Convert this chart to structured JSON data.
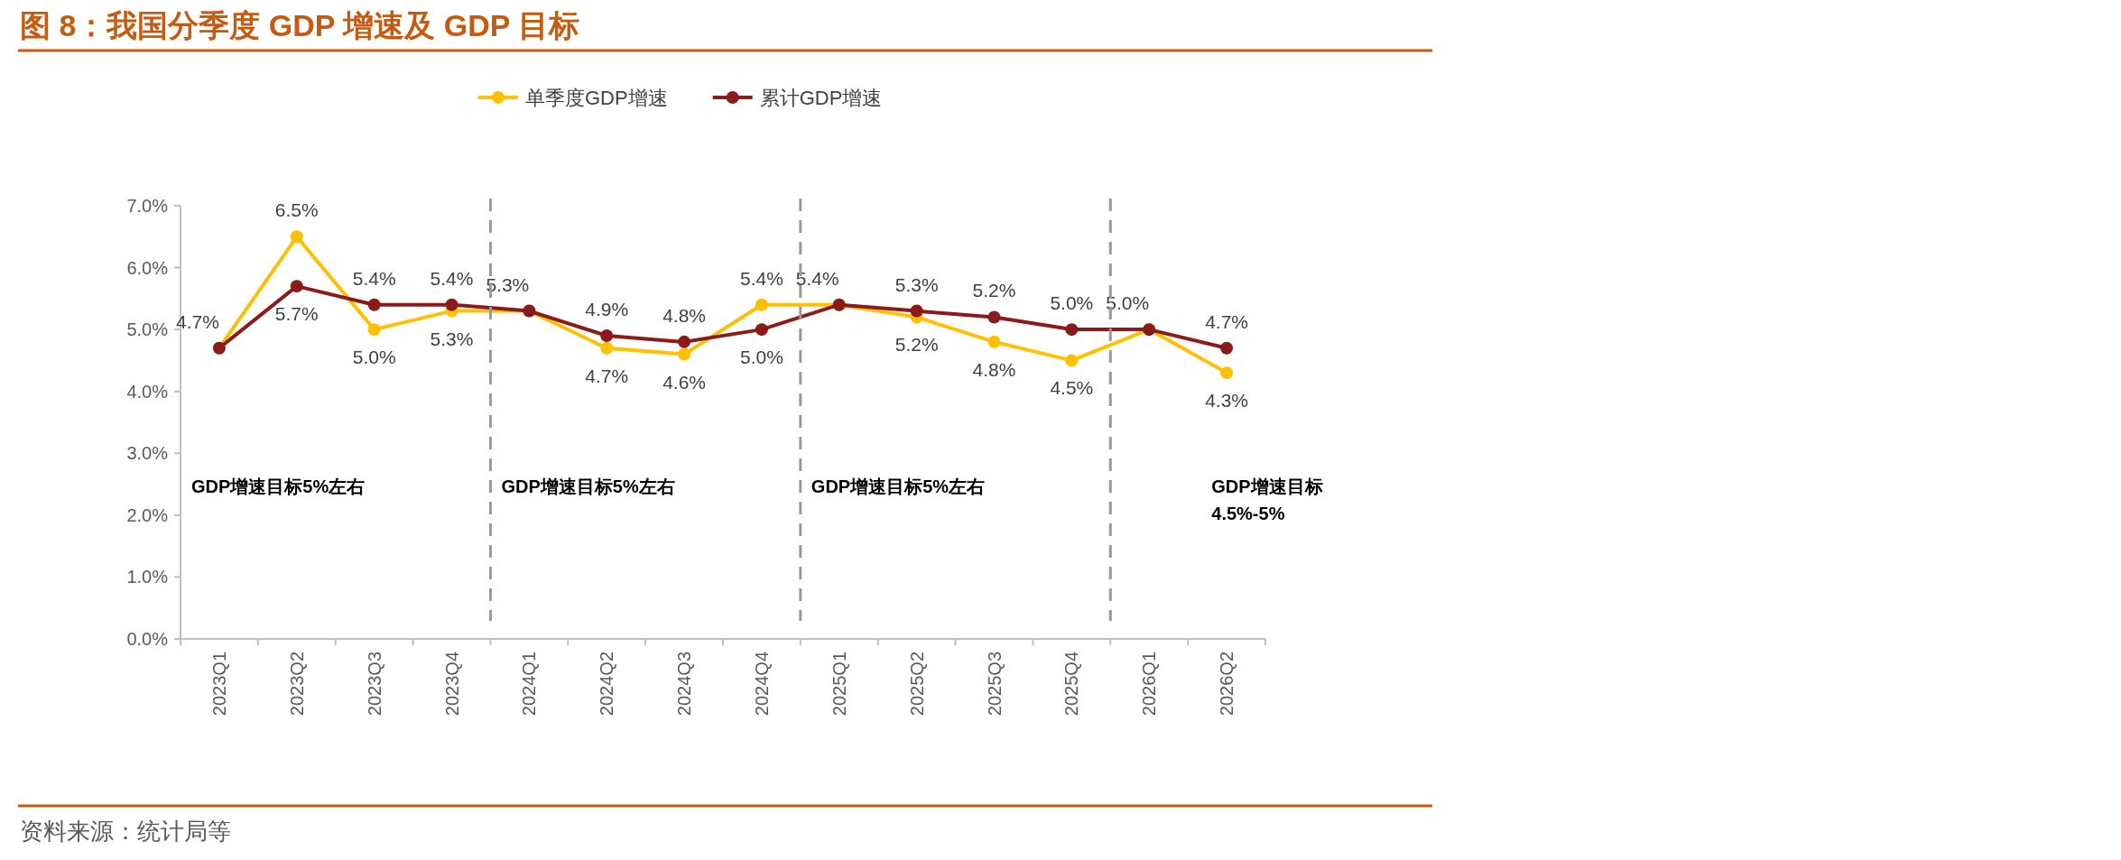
{
  "chart_data": {
    "type": "line",
    "title": "图 8：我国分季度 GDP 增速及 GDP 目标",
    "categories": [
      "2023Q1",
      "2023Q2",
      "2023Q3",
      "2023Q4",
      "2024Q1",
      "2024Q2",
      "2024Q3",
      "2024Q4",
      "2025Q1",
      "2025Q2",
      "2025Q3",
      "2025Q4",
      "2026Q1",
      "2026Q2"
    ],
    "series": [
      {
        "name": "单季度GDP增速",
        "color": "#ffc000",
        "values": [
          4.7,
          6.5,
          5.0,
          5.3,
          5.3,
          4.7,
          4.6,
          5.4,
          5.4,
          5.2,
          4.8,
          4.5,
          5.0,
          4.3
        ],
        "value_labels": [
          "4.7%",
          "6.5%",
          "5.0%",
          "5.3%",
          "5.3%",
          "4.7%",
          "4.6%",
          "5.4%",
          "5.4%",
          "5.2%",
          "4.8%",
          "4.5%",
          "5.0%",
          "4.3%"
        ]
      },
      {
        "name": "累计GDP增速",
        "color": "#8b1a1a",
        "values": [
          4.7,
          5.7,
          5.4,
          5.4,
          5.3,
          4.9,
          4.8,
          5.0,
          5.4,
          5.3,
          5.2,
          5.0,
          5.0,
          4.7
        ],
        "value_labels": [
          null,
          "5.7%",
          "5.4%",
          "5.4%",
          null,
          "4.9%",
          "4.8%",
          "5.0%",
          null,
          "5.3%",
          "5.2%",
          "5.0%",
          null,
          "4.7%"
        ]
      }
    ],
    "ylim": [
      0,
      7
    ],
    "yticks": [
      {
        "value": 0,
        "label": "0.0%"
      },
      {
        "value": 1,
        "label": "1.0%"
      },
      {
        "value": 2,
        "label": "2.0%"
      },
      {
        "value": 3,
        "label": "3.0%"
      },
      {
        "value": 4,
        "label": "4.0%"
      },
      {
        "value": 5,
        "label": "5.0%"
      },
      {
        "value": 6,
        "label": "6.0%"
      },
      {
        "value": 7,
        "label": "7.0%"
      }
    ],
    "annotations": [
      "GDP增速目标5%左右",
      "GDP增速目标5%左右",
      "GDP增速目标5%左右",
      "GDP增速目标\n4.5%-5%",
      "资料来源：统计局等"
    ],
    "marker": "circle",
    "line_style": "solid",
    "legend": "top",
    "grid": false
  }
}
